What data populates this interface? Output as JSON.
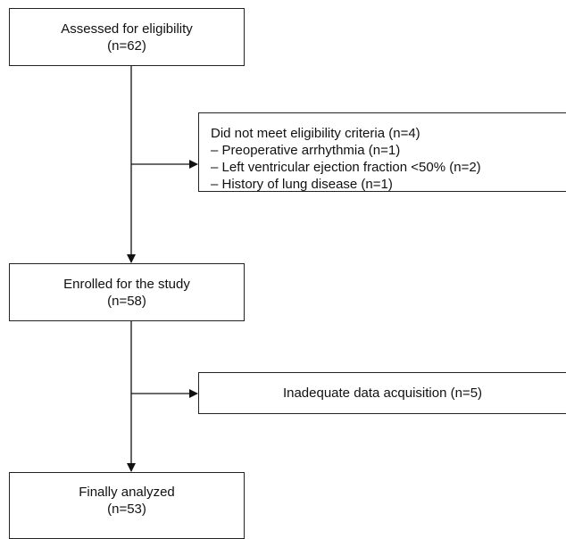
{
  "flow": {
    "assessed": {
      "label": "Assessed for eligibility",
      "count": "(n=62)"
    },
    "excluded": {
      "title": "Did not meet eligibility criteria (n=4)",
      "reasons": [
        "– Preoperative arrhythmia (n=1)",
        "– Left ventricular ejection fraction <50% (n=2)",
        "– History of lung disease (n=1)"
      ]
    },
    "enrolled": {
      "label": "Enrolled for the study",
      "count": "(n=58)"
    },
    "dropped": {
      "label": "Inadequate data acquisition (n=5)"
    },
    "analyzed": {
      "label": "Finally analyzed",
      "count": "(n=53)"
    }
  },
  "colors": {
    "line": "#111111",
    "border": "#222222",
    "text": "#111111"
  }
}
